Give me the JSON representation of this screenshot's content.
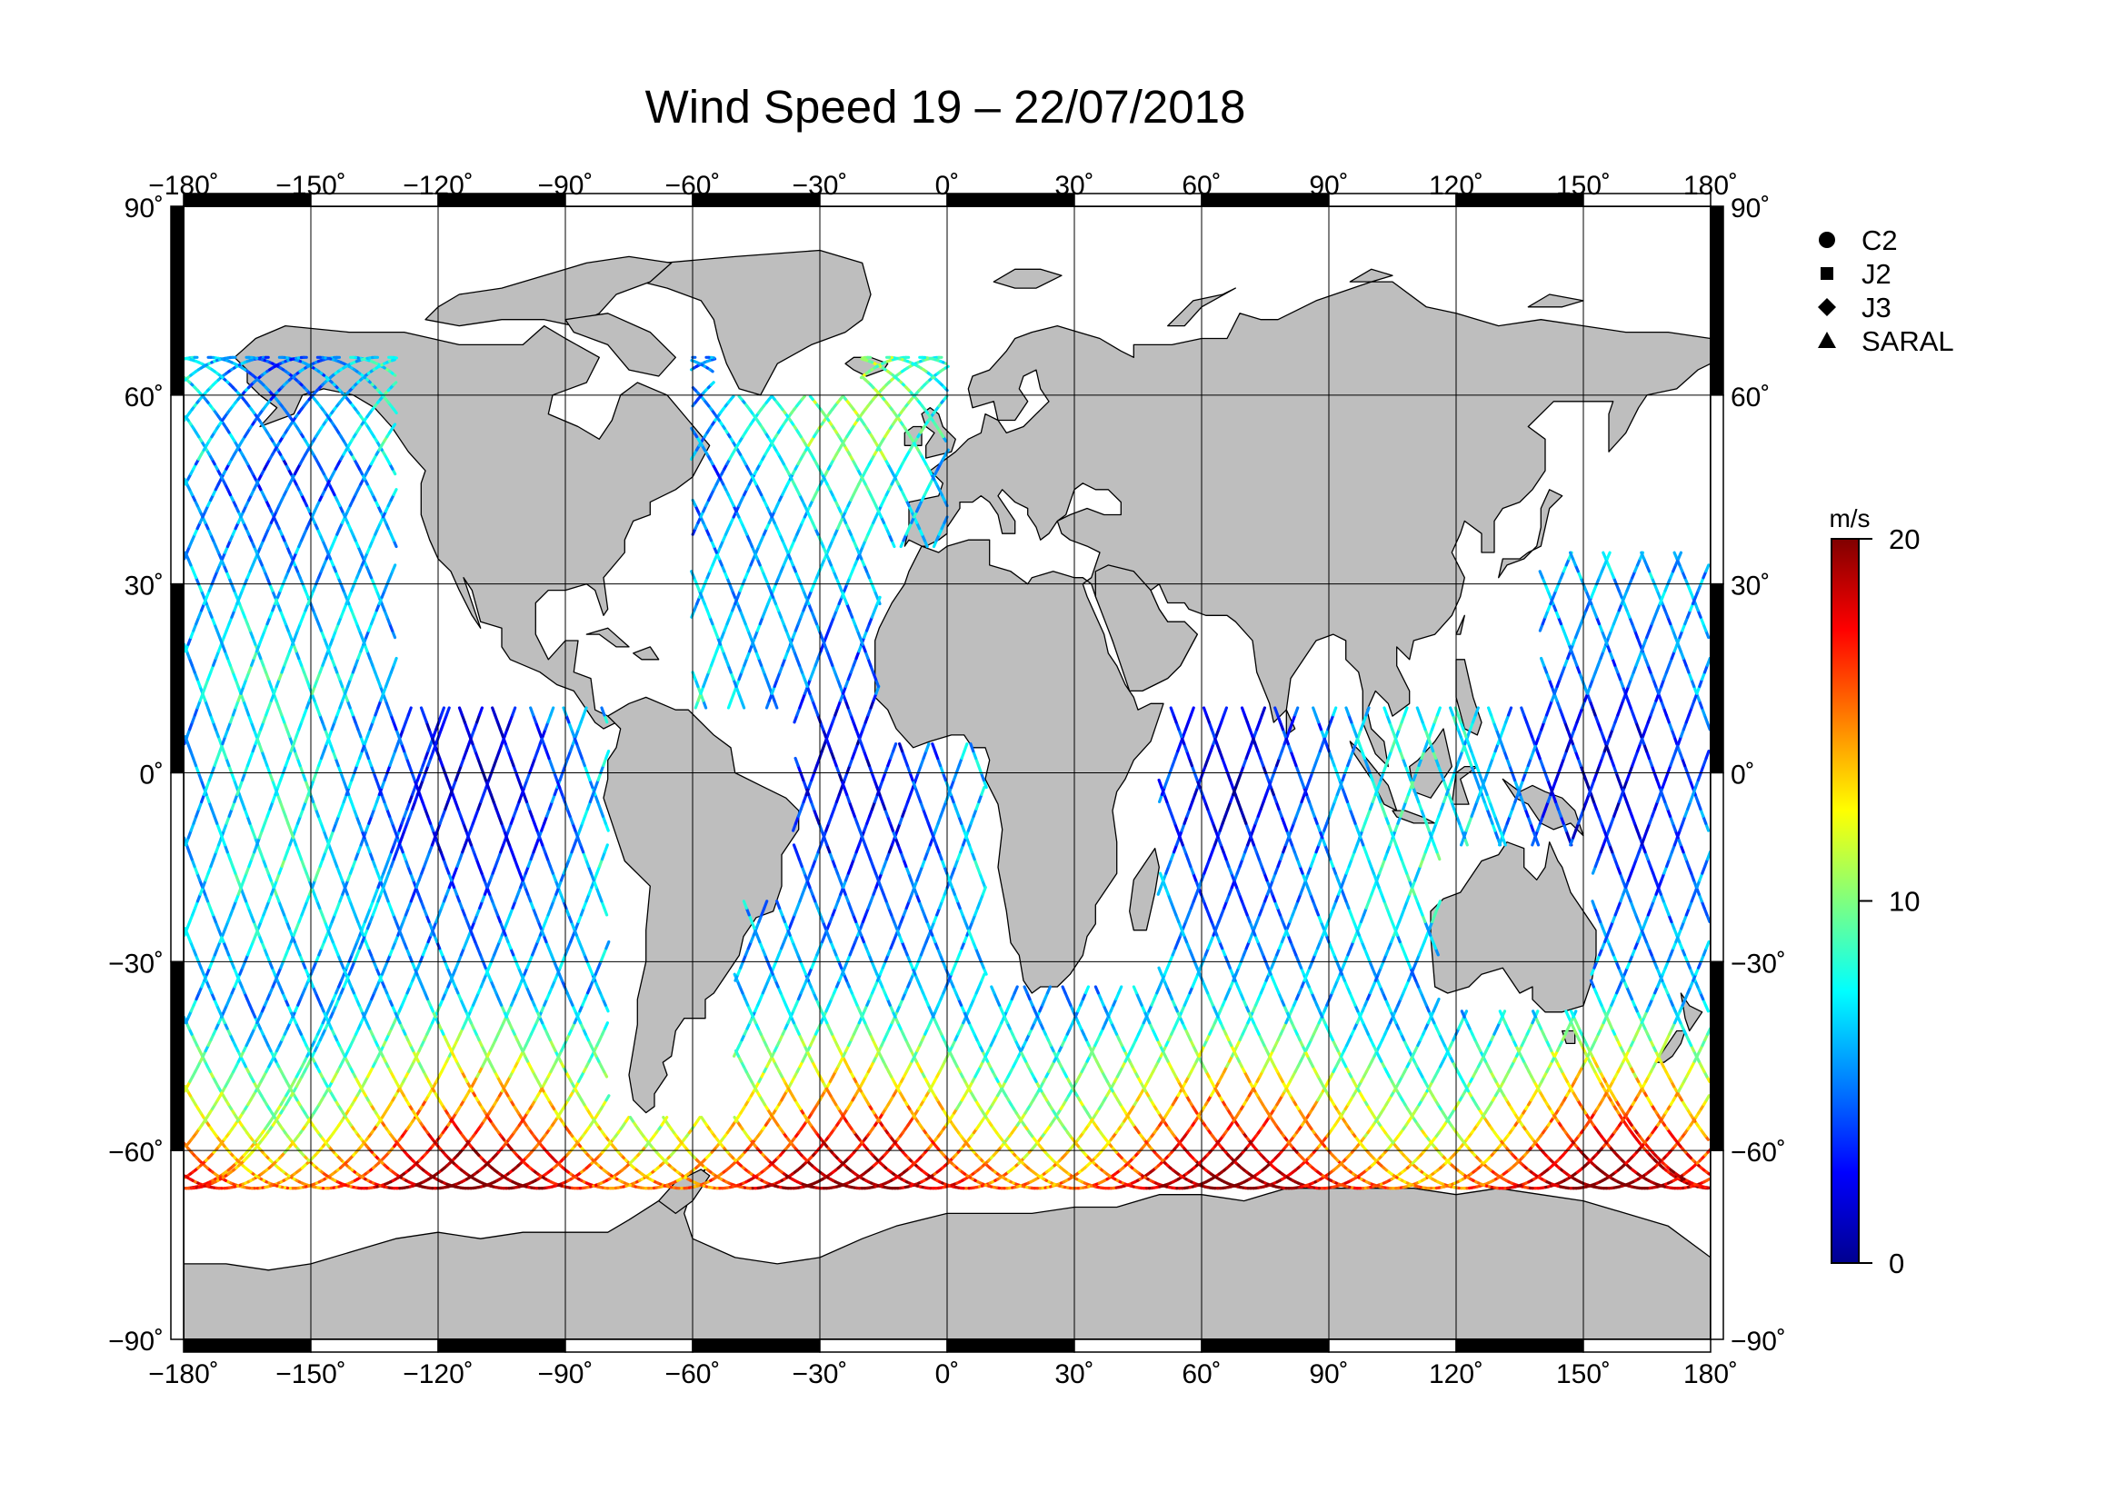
{
  "title": "Wind Speed 19 – 22/07/2018",
  "map": {
    "projection": "equirectangular",
    "lon_range": [
      -180,
      180
    ],
    "lat_range": [
      -90,
      90
    ],
    "lon_ticks": [
      "−180˚",
      "−150˚",
      "−120˚",
      "−90˚",
      "−60˚",
      "−30˚",
      "0˚",
      "30˚",
      "60˚",
      "90˚",
      "120˚",
      "150˚",
      "180˚"
    ],
    "lat_ticks_left": [
      "90˚",
      "60˚",
      "30˚",
      "0˚",
      "−30˚",
      "−60˚",
      "−90˚"
    ],
    "lat_ticks_right": [
      "90˚",
      "60˚",
      "30˚",
      "0˚",
      "−30˚",
      "−60˚",
      "−90˚"
    ],
    "land_color": "#bebebe",
    "ocean_color": "#ffffff",
    "grid": true
  },
  "legend": [
    {
      "symbol": "circle",
      "label": "C2"
    },
    {
      "symbol": "square",
      "label": "J2"
    },
    {
      "symbol": "diamond",
      "label": "J3"
    },
    {
      "symbol": "triangle",
      "label": "SARAL"
    }
  ],
  "colorbar": {
    "unit": "m/s",
    "min": 0,
    "max": 20,
    "tick_labels": [
      "20",
      "10",
      "0"
    ],
    "colormap": "jet"
  },
  "chart_data": {
    "type": "scatter",
    "title": "Wind Speed 19 – 22/07/2018",
    "xlabel": "",
    "ylabel": "",
    "xlim": [
      -180,
      180
    ],
    "ylim": [
      -90,
      90
    ],
    "color_variable": "wind speed (m/s)",
    "color_range": [
      0,
      20
    ],
    "series": [
      {
        "name": "C2",
        "marker": "circle"
      },
      {
        "name": "J2",
        "marker": "square"
      },
      {
        "name": "J3",
        "marker": "diamond"
      },
      {
        "name": "SARAL",
        "marker": "triangle"
      }
    ]
  }
}
